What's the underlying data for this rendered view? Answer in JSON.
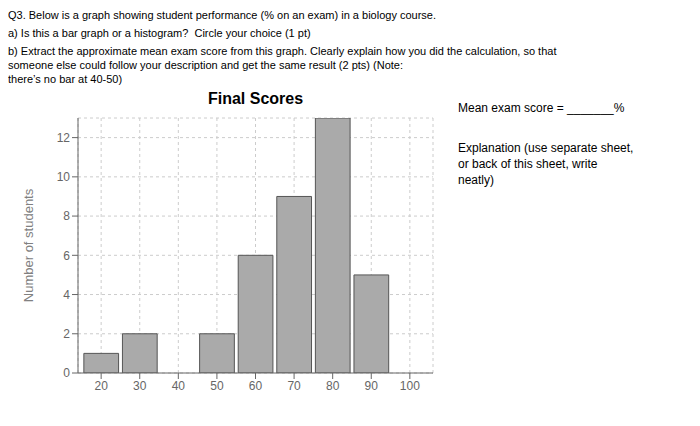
{
  "chart_data": {
    "type": "bar",
    "title": "Final Scores",
    "ylabel": "Number of students",
    "x": [
      20,
      30,
      40,
      50,
      60,
      70,
      80,
      90,
      100
    ],
    "values": [
      1,
      2,
      0,
      2,
      6,
      9,
      13,
      5,
      0
    ],
    "color": "#aaaaaa",
    "xlim": [
      14,
      106
    ],
    "xticks": [
      20,
      30,
      40,
      50,
      60,
      70,
      80,
      90,
      100
    ],
    "ylim": [
      0,
      13
    ],
    "yticks": [
      0,
      2,
      4,
      6,
      8,
      10,
      12
    ],
    "grid": true,
    "annotations": [
      "Q3. Below is a graph showing student performance (% on an exam) in a biology course.",
      "a) Is this a bar graph or a histogram?  Circle your choice (1 pt)",
      "b) Extract the approximate mean exam score from this graph. Clearly explain how you did the calculation, so that\nsomeone else could follow your description and get the same result (2 pts) (Note:\nthere’s no bar at 40-50)",
      "Mean exam score = _______%",
      "Explanation (use separate sheet,\nor back of this sheet, write\nneatly)"
    ]
  }
}
